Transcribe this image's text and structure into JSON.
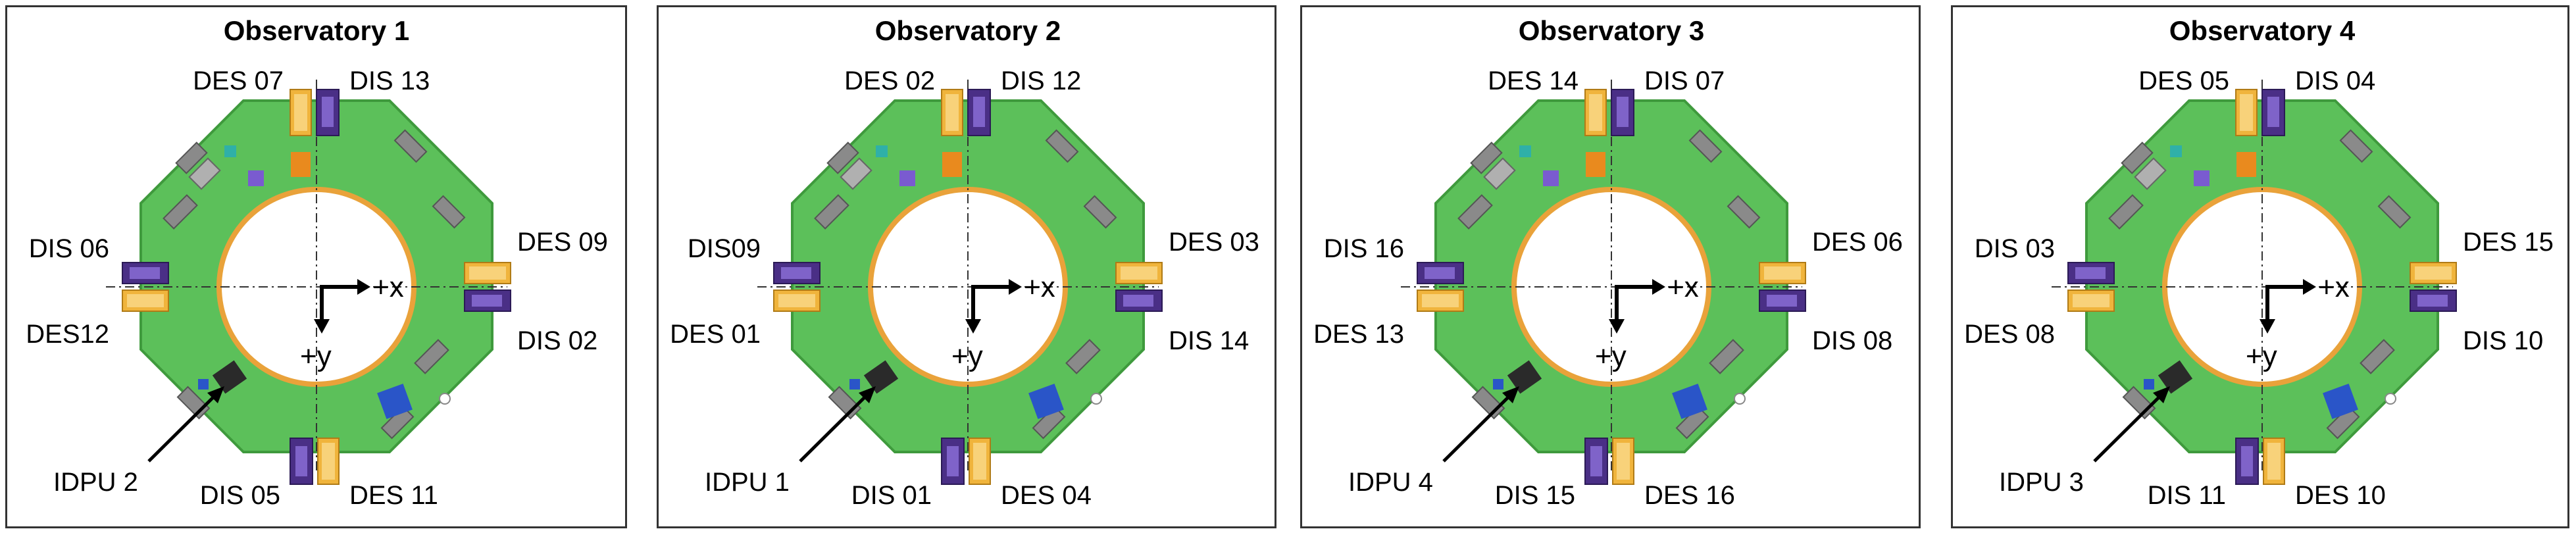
{
  "colors": {
    "deck": "#5cc05a",
    "deck_edge": "#3f9a3d",
    "ring": "#e9a23a",
    "des": "#f0b43c",
    "dis": "#4a2f86",
    "blue_box": "#2a55c8",
    "dark_box": "#2a2a2a",
    "border": "#333333"
  },
  "icons": [
    "des-sensor-icon",
    "dis-sensor-icon",
    "idpu-box-icon",
    "coordinate-axes-icon"
  ],
  "panels": [
    {
      "title": "Observatory 1",
      "top_left": "DES 07",
      "top_right": "DIS 13",
      "left_top": "DIS 06",
      "left_bottom": "DES12",
      "right_top": "DES 09",
      "right_bottom": "DIS 02",
      "bottom_left": "DIS 05",
      "bottom_right": "DES 11",
      "idpu": "IDPU 2",
      "x_axis": "+x",
      "y_axis": "+y"
    },
    {
      "title": "Observatory 2",
      "top_left": "DES 02",
      "top_right": "DIS 12",
      "left_top": "DIS09",
      "left_bottom": "DES 01",
      "right_top": "DES 03",
      "right_bottom": "DIS 14",
      "bottom_left": "DIS 01",
      "bottom_right": "DES 04",
      "idpu": "IDPU 1",
      "x_axis": "+x",
      "y_axis": "+y"
    },
    {
      "title": "Observatory 3",
      "top_left": "DES 14",
      "top_right": "DIS 07",
      "left_top": "DIS 16",
      "left_bottom": "DES 13",
      "right_top": "DES 06",
      "right_bottom": "DIS 08",
      "bottom_left": "DIS 15",
      "bottom_right": "DES 16",
      "idpu": "IDPU 4",
      "x_axis": "+x",
      "y_axis": "+y"
    },
    {
      "title": "Observatory 4",
      "top_left": "DES 05",
      "top_right": "DIS 04",
      "left_top": "DIS 03",
      "left_bottom": "DES 08",
      "right_top": "DES 15",
      "right_bottom": "DIS 10",
      "bottom_left": "DIS 11",
      "bottom_right": "DES 10",
      "idpu": "IDPU 3",
      "x_axis": "+x",
      "y_axis": "+y"
    }
  ]
}
